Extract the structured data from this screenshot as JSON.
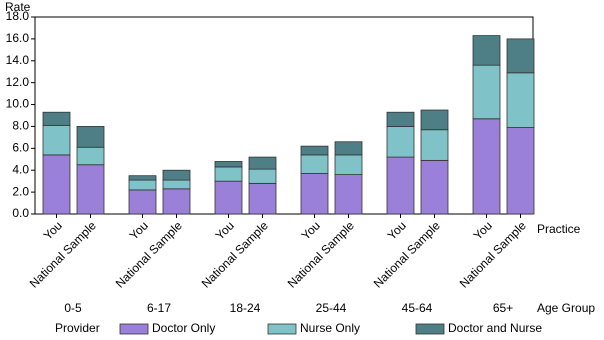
{
  "chart_data": {
    "type": "bar",
    "stacked": true,
    "y_label": "Rate",
    "x_label": "Practice",
    "group_label": "Age Group",
    "legend_title": "Provider",
    "groups": [
      "0-5",
      "6-17",
      "18-24",
      "25-44",
      "45-64",
      "65+"
    ],
    "categories": [
      "You",
      "National Sample",
      "You",
      "National Sample",
      "You",
      "National Sample",
      "You",
      "National Sample",
      "You",
      "National Sample",
      "You",
      "National Sample"
    ],
    "series": [
      {
        "name": "Doctor Only",
        "color": "#9a80d8",
        "values": [
          5.4,
          4.5,
          2.2,
          2.3,
          3.0,
          2.8,
          3.7,
          3.6,
          5.2,
          4.9,
          8.7,
          7.9
        ]
      },
      {
        "name": "Nurse Only",
        "color": "#7fc3c8",
        "values": [
          2.7,
          1.6,
          0.9,
          0.8,
          1.3,
          1.3,
          1.7,
          1.8,
          2.8,
          2.8,
          4.9,
          5.0
        ]
      },
      {
        "name": "Doctor and Nurse",
        "color": "#4e7f86",
        "values": [
          1.2,
          1.9,
          0.4,
          0.9,
          0.5,
          1.1,
          0.8,
          1.2,
          1.3,
          1.8,
          2.7,
          3.1
        ]
      }
    ],
    "ylim": [
      0,
      18
    ],
    "yticks": [
      {
        "value": 0,
        "label": "0.0"
      },
      {
        "value": 2,
        "label": "2.0"
      },
      {
        "value": 4,
        "label": "4.0"
      },
      {
        "value": 6,
        "label": "6.0"
      },
      {
        "value": 8,
        "label": "8.0"
      },
      {
        "value": 10,
        "label": "10.0"
      },
      {
        "value": 12,
        "label": "12.0"
      },
      {
        "value": 14,
        "label": "14.0"
      },
      {
        "value": 16,
        "label": "16.0"
      },
      {
        "value": 18,
        "label": "18.0"
      }
    ],
    "grid": false
  }
}
